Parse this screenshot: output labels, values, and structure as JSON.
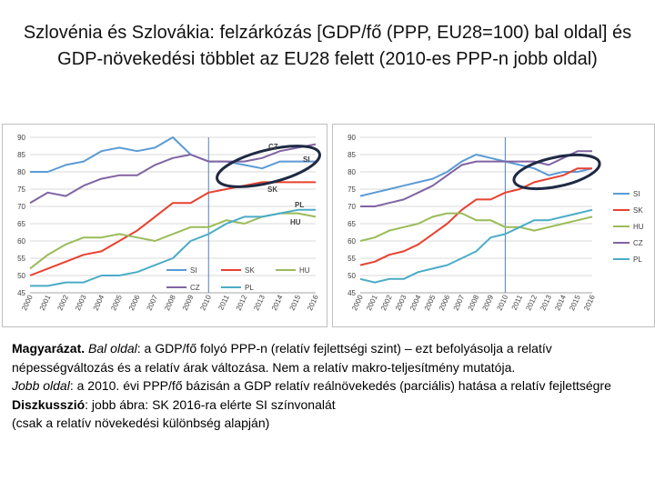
{
  "title": "Szlovénia és Szlovákia: felzárkózás [GDP/fő (PPP, EU28=100) bal oldal] és GDP-növekedési többlet az EU28 felett (2010-es PPP-n jobb oldal)",
  "notes": {
    "line1_bold": "Magyarázat.",
    "line1_italic": "Bal oldal",
    "line1_rest": ": a GDP/fő folyó PPP-n (relatív fejlettségi szint) – ezt befolyásolja a relatív népességváltozás és a relatív árak változása. Nem a relatív makro-teljesítmény mutatója.",
    "line2_italic": "Jobb oldal",
    "line2_rest": ": a 2010. évi PPP/fő bázisán a GDP relatív reálnövekedés (parciális) hatása a relatív fejlettségre",
    "line3_bold": "Diszkusszió",
    "line3_rest": ": jobb ábra: SK 2016-ra elérte SI színvonalát",
    "line4": "(csak a relatív növekedési különbség alapján)"
  },
  "chart_data": [
    {
      "type": "line",
      "title": "",
      "xlabel": "",
      "ylabel": "",
      "ylim": [
        45,
        90
      ],
      "yticks": [
        "45",
        "50",
        "55",
        "60",
        "65",
        "70",
        "75",
        "80",
        "85",
        "90"
      ],
      "categories": [
        "2000",
        "2001",
        "2002",
        "2003",
        "2004",
        "2005",
        "2006",
        "2007",
        "2008",
        "2009",
        "2010",
        "2011",
        "2012",
        "2013",
        "2014",
        "2015",
        "2016"
      ],
      "legend": {
        "position": "bottom",
        "entries": [
          "SI",
          "SK",
          "HU",
          "CZ",
          "PL"
        ]
      },
      "labels": [
        "CZ",
        "SI",
        "SK",
        "PL",
        "HU"
      ],
      "series": [
        {
          "name": "SI",
          "color": "#5b9bd5",
          "values": [
            80,
            80,
            82,
            83,
            86,
            87,
            86,
            87,
            90,
            85,
            83,
            83,
            82,
            81,
            83,
            83,
            83
          ]
        },
        {
          "name": "SK",
          "color": "#e8412f",
          "values": [
            50,
            52,
            54,
            56,
            57,
            60,
            63,
            67,
            71,
            71,
            74,
            75,
            76,
            77,
            77,
            77,
            77
          ]
        },
        {
          "name": "HU",
          "color": "#9bbb59",
          "values": [
            52,
            56,
            59,
            61,
            61,
            62,
            61,
            60,
            62,
            64,
            64,
            66,
            65,
            67,
            68,
            68,
            67
          ]
        },
        {
          "name": "CZ",
          "color": "#8064a2",
          "values": [
            71,
            74,
            73,
            76,
            78,
            79,
            79,
            82,
            84,
            85,
            83,
            83,
            83,
            84,
            86,
            87,
            88
          ]
        },
        {
          "name": "PL",
          "color": "#4bacc6",
          "values": [
            47,
            47,
            48,
            48,
            50,
            50,
            51,
            53,
            55,
            60,
            62,
            65,
            67,
            67,
            68,
            69,
            69
          ]
        }
      ]
    },
    {
      "type": "line",
      "title": "",
      "xlabel": "",
      "ylabel": "",
      "ylim": [
        45,
        90
      ],
      "yticks": [
        "45",
        "50",
        "55",
        "60",
        "65",
        "70",
        "75",
        "80",
        "85",
        "90"
      ],
      "categories": [
        "2000",
        "2001",
        "2002",
        "2003",
        "2004",
        "2005",
        "2006",
        "2007",
        "2008",
        "2009",
        "2010",
        "2011",
        "2012",
        "2013",
        "2014",
        "2015",
        "2016"
      ],
      "legend": {
        "position": "right",
        "entries": [
          "SI",
          "SK",
          "HU",
          "CZ",
          "PL"
        ]
      },
      "series": [
        {
          "name": "SI",
          "color": "#5b9bd5",
          "values": [
            73,
            74,
            75,
            76,
            77,
            78,
            80,
            83,
            85,
            84,
            83,
            82,
            81,
            79,
            80,
            80,
            81
          ]
        },
        {
          "name": "SK",
          "color": "#e8412f",
          "values": [
            53,
            54,
            56,
            57,
            59,
            62,
            65,
            69,
            72,
            72,
            74,
            75,
            77,
            78,
            79,
            81,
            81
          ]
        },
        {
          "name": "HU",
          "color": "#9bbb59",
          "values": [
            60,
            61,
            63,
            64,
            65,
            67,
            68,
            68,
            66,
            66,
            64,
            64,
            63,
            64,
            65,
            66,
            67
          ]
        },
        {
          "name": "CZ",
          "color": "#8064a2",
          "values": [
            70,
            70,
            71,
            72,
            74,
            76,
            79,
            82,
            83,
            83,
            83,
            83,
            83,
            82,
            84,
            86,
            86
          ]
        },
        {
          "name": "PL",
          "color": "#4bacc6",
          "values": [
            49,
            48,
            49,
            49,
            51,
            52,
            53,
            55,
            57,
            61,
            62,
            64,
            66,
            66,
            67,
            68,
            69
          ]
        }
      ]
    }
  ]
}
